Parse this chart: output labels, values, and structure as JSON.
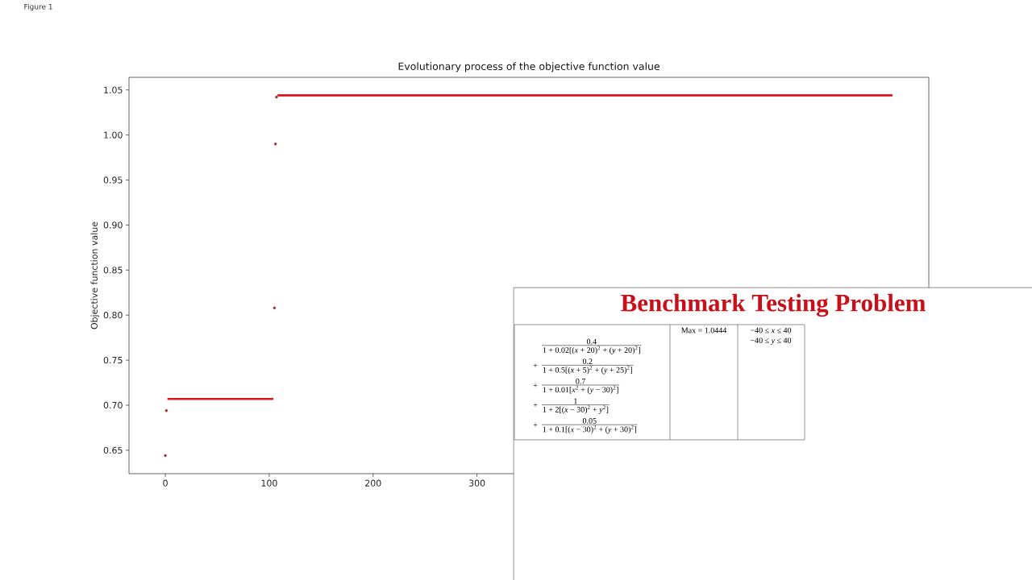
{
  "chart_data": [
    {
      "type": "scatter",
      "title": "Evolutionary process of the objective function value",
      "ylabel": "Objective function value",
      "annotations": [
        "Figure 1"
      ],
      "series": [
        {
          "type": "scatter",
          "color": "#9e2a2a",
          "marker": "circle",
          "x": [
            0,
            1,
            105,
            106,
            107
          ],
          "values": [
            0.644,
            0.694,
            0.808,
            0.99,
            1.042
          ]
        },
        {
          "type": "line",
          "color": "#e3121b",
          "x": [
            2,
            104
          ],
          "values": [
            0.707,
            0.707
          ]
        },
        {
          "type": "line",
          "color": "#e3121b",
          "x": [
            108,
            700
          ],
          "values": [
            1.044,
            1.044
          ]
        }
      ],
      "xlim": [
        -35,
        735
      ],
      "ylim": [
        0.624,
        1.064
      ],
      "xticks": [
        0,
        100,
        200,
        300
      ],
      "yticks": [
        0.65,
        {
          "value": 0.7,
          "label": "0.70"
        },
        0.75,
        {
          "value": 0.8,
          "label": "0.80"
        },
        0.85,
        {
          "value": 0.9,
          "label": "0.90"
        },
        0.95,
        {
          "value": 1.0,
          "label": "1.00"
        },
        1.05
      ]
    },
    {
      "type": "other",
      "title": "Benchmark Testing Problem",
      "annotations": [
        "0.4",
        "1 + 0.02[(*x* + 20)$^{2}$ + (*y* + 20)$^{2}$]",
        "+",
        "0.2",
        "1 + 0.5[(*x* + 5)$^{2}$ + (*y* + 25)$^{2}$]",
        "+",
        "0.7",
        "1 + 0.01[*x*$^{2}$ + (*y* − 30)$^{2}$]",
        "+",
        "1",
        "1 + 2[(*x* − 30)$^{2}$ + *y*$^{2}$]",
        "+",
        "0.05",
        "1 + 0.1[(*x* − 30)$^{2}$ + (*y* + 30)$^{2}$]",
        "Max = 1.0444",
        "−40 ≤ *x* ≤ 40",
        "−40 ≤ *y* ≤ 40"
      ]
    }
  ]
}
